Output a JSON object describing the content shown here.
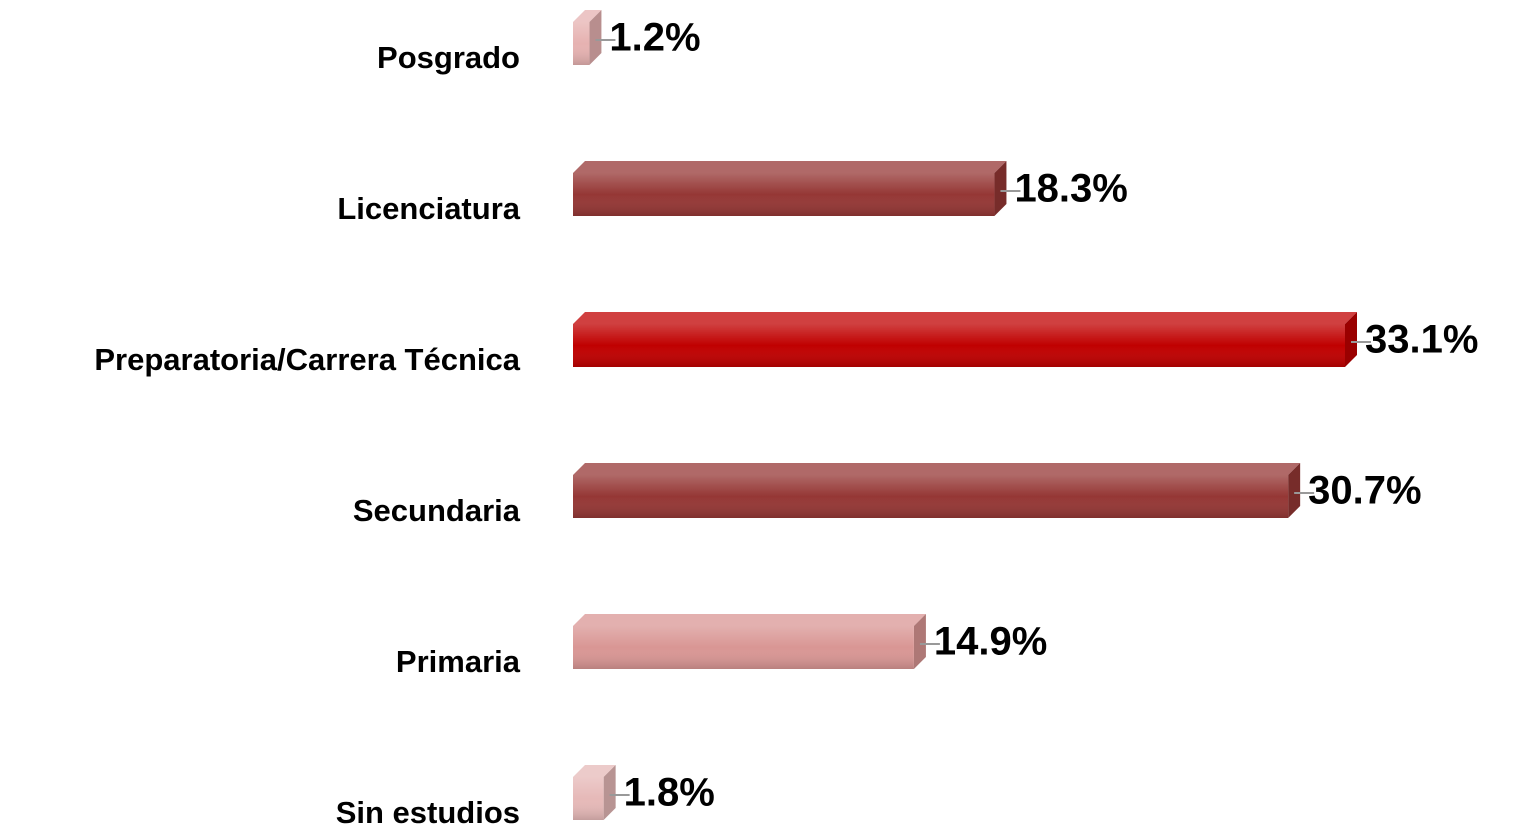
{
  "chart_data": {
    "type": "bar",
    "orientation": "horizontal",
    "categories": [
      "Posgrado",
      "Licenciatura",
      "Preparatoria/Carrera Técnica",
      "Secundaria",
      "Primaria",
      "Sin estudios"
    ],
    "values": [
      1.2,
      18.3,
      33.1,
      30.7,
      14.9,
      1.8
    ],
    "value_labels": [
      "1.2%",
      "18.3%",
      "33.1%",
      "30.7%",
      "14.9%",
      "1.8%"
    ],
    "colors": [
      "#e6b2b1",
      "#953735",
      "#c00000",
      "#953735",
      "#d99694",
      "#e6b9b8"
    ]
  }
}
